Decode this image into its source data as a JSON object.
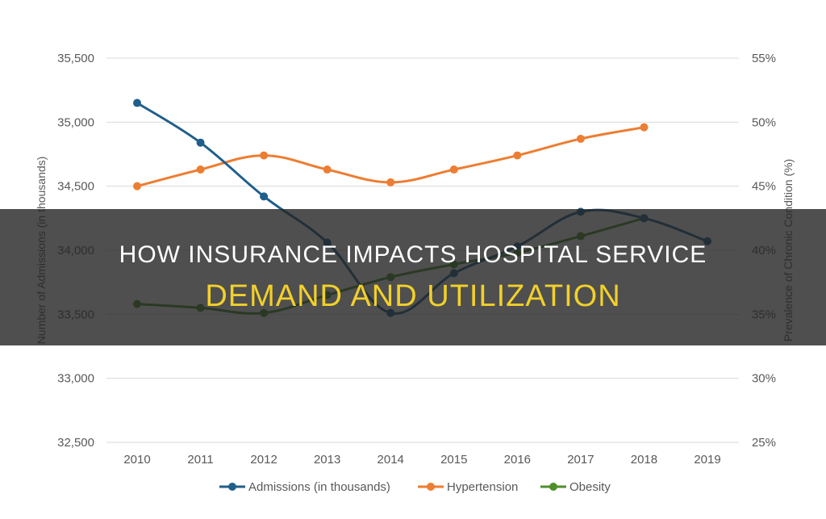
{
  "chart_data": {
    "type": "line",
    "categories": [
      "2010",
      "2011",
      "2012",
      "2013",
      "2014",
      "2015",
      "2016",
      "2017",
      "2018",
      "2019"
    ],
    "y_left": {
      "label": "Number of Admissions (in thousands)",
      "ylim": [
        32500,
        35500
      ],
      "ticks": [
        "35,500",
        "35,000",
        "34,500",
        "34,000",
        "33,500",
        "33,000",
        "32,500"
      ],
      "tick_values": [
        35500,
        35000,
        34500,
        34000,
        33500,
        33000,
        32500
      ]
    },
    "y_right": {
      "label": "Prevalence of Chronic Condition (%)",
      "ylim": [
        25,
        55
      ],
      "ticks": [
        "55%",
        "50%",
        "45%",
        "40%",
        "35%",
        "30%",
        "25%"
      ],
      "tick_values": [
        55,
        50,
        45,
        40,
        35,
        30,
        25
      ]
    },
    "series": [
      {
        "name": "Admissions (in thousands)",
        "axis": "left",
        "color": "#1f5f8b",
        "values": [
          35150,
          34840,
          34420,
          34060,
          33510,
          33820,
          34030,
          34300,
          34250,
          34070
        ]
      },
      {
        "name": "Hypertension",
        "axis": "right",
        "color": "#ed7d31",
        "values": [
          45.0,
          46.3,
          47.4,
          46.3,
          45.3,
          46.3,
          47.4,
          48.7,
          49.6,
          null
        ]
      },
      {
        "name": "Obesity",
        "axis": "right",
        "color": "#4e8f2c",
        "values": [
          35.8,
          35.5,
          35.1,
          36.5,
          37.9,
          38.9,
          39.8,
          41.1,
          42.5,
          null
        ]
      }
    ],
    "grid": true,
    "legend_position": "bottom"
  },
  "banner": {
    "line1": "HOW INSURANCE IMPACTS HOSPITAL SERVICE",
    "line2": "DEMAND AND UTILIZATION"
  }
}
